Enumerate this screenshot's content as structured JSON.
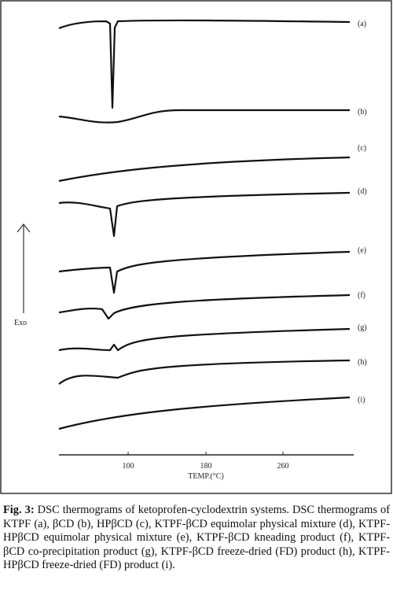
{
  "figure": {
    "trace_labels": [
      "(a)",
      "(b)",
      "(c)",
      "(d)",
      "(e)",
      "(f)",
      "(g)",
      "(h)",
      "(i)"
    ],
    "exo_label": "Exo",
    "x_ticks": [
      "100",
      "180",
      "260"
    ],
    "x_axis_label": "TEMP.(°C)"
  },
  "caption": {
    "label": "Fig. 3:",
    "text": "DSC thermograms of ketoprofen-cyclodextrin systems. DSC thermograms of KTPF (a), βCD (b), HPβCD (c), KTPF-βCD equimolar physical mixture (d), KTPF-HPβCD equimolar physical mixture (e), KTPF-βCD kneading product (f), KTPF-βCD co-precipitation product (g), KTPF-βCD freeze-dried (FD) product (h), KTPF-HPβCD freeze-dried (FD) product (i)."
  }
}
